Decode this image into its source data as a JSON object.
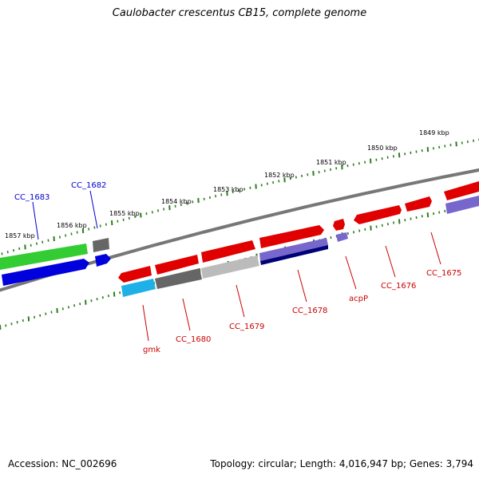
{
  "title": "Caulobacter crescentus CB15, complete genome",
  "footer": {
    "accession": "Accession: NC_002696",
    "summary": "Topology: circular; Length: 4,016,947 bp; Genes: 3,794"
  },
  "colors": {
    "backbone": "#888888",
    "tick": "#2e7d1e",
    "label_red": "#cc0000",
    "label_blue": "#0000cc",
    "gene_red": "#e00000",
    "gene_gray": "#666666",
    "gene_lightgray": "#bbbbbb",
    "gene_lightblue": "#7766cc",
    "gene_navy": "#000077",
    "gene_cyan": "#1fb0e8",
    "gene_green": "#33cc33",
    "gene_blue": "#0000dd"
  },
  "scale_labels": [
    "1849 kbp",
    "1850 kbp",
    "1851 kbp",
    "1852 kbp",
    "1853 kbp",
    "1854 kbp",
    "1855 kbp",
    "1856 kbp",
    "1857 kbp"
  ],
  "gene_labels": {
    "cc1683": "CC_1683",
    "cc1682": "CC_1682",
    "gmk": "gmk",
    "cc1680": "CC_1680",
    "cc1679": "CC_1679",
    "cc1678": "CC_1678",
    "acpP": "acpP",
    "cc1676": "CC_1676",
    "cc1675": "CC_1675"
  }
}
